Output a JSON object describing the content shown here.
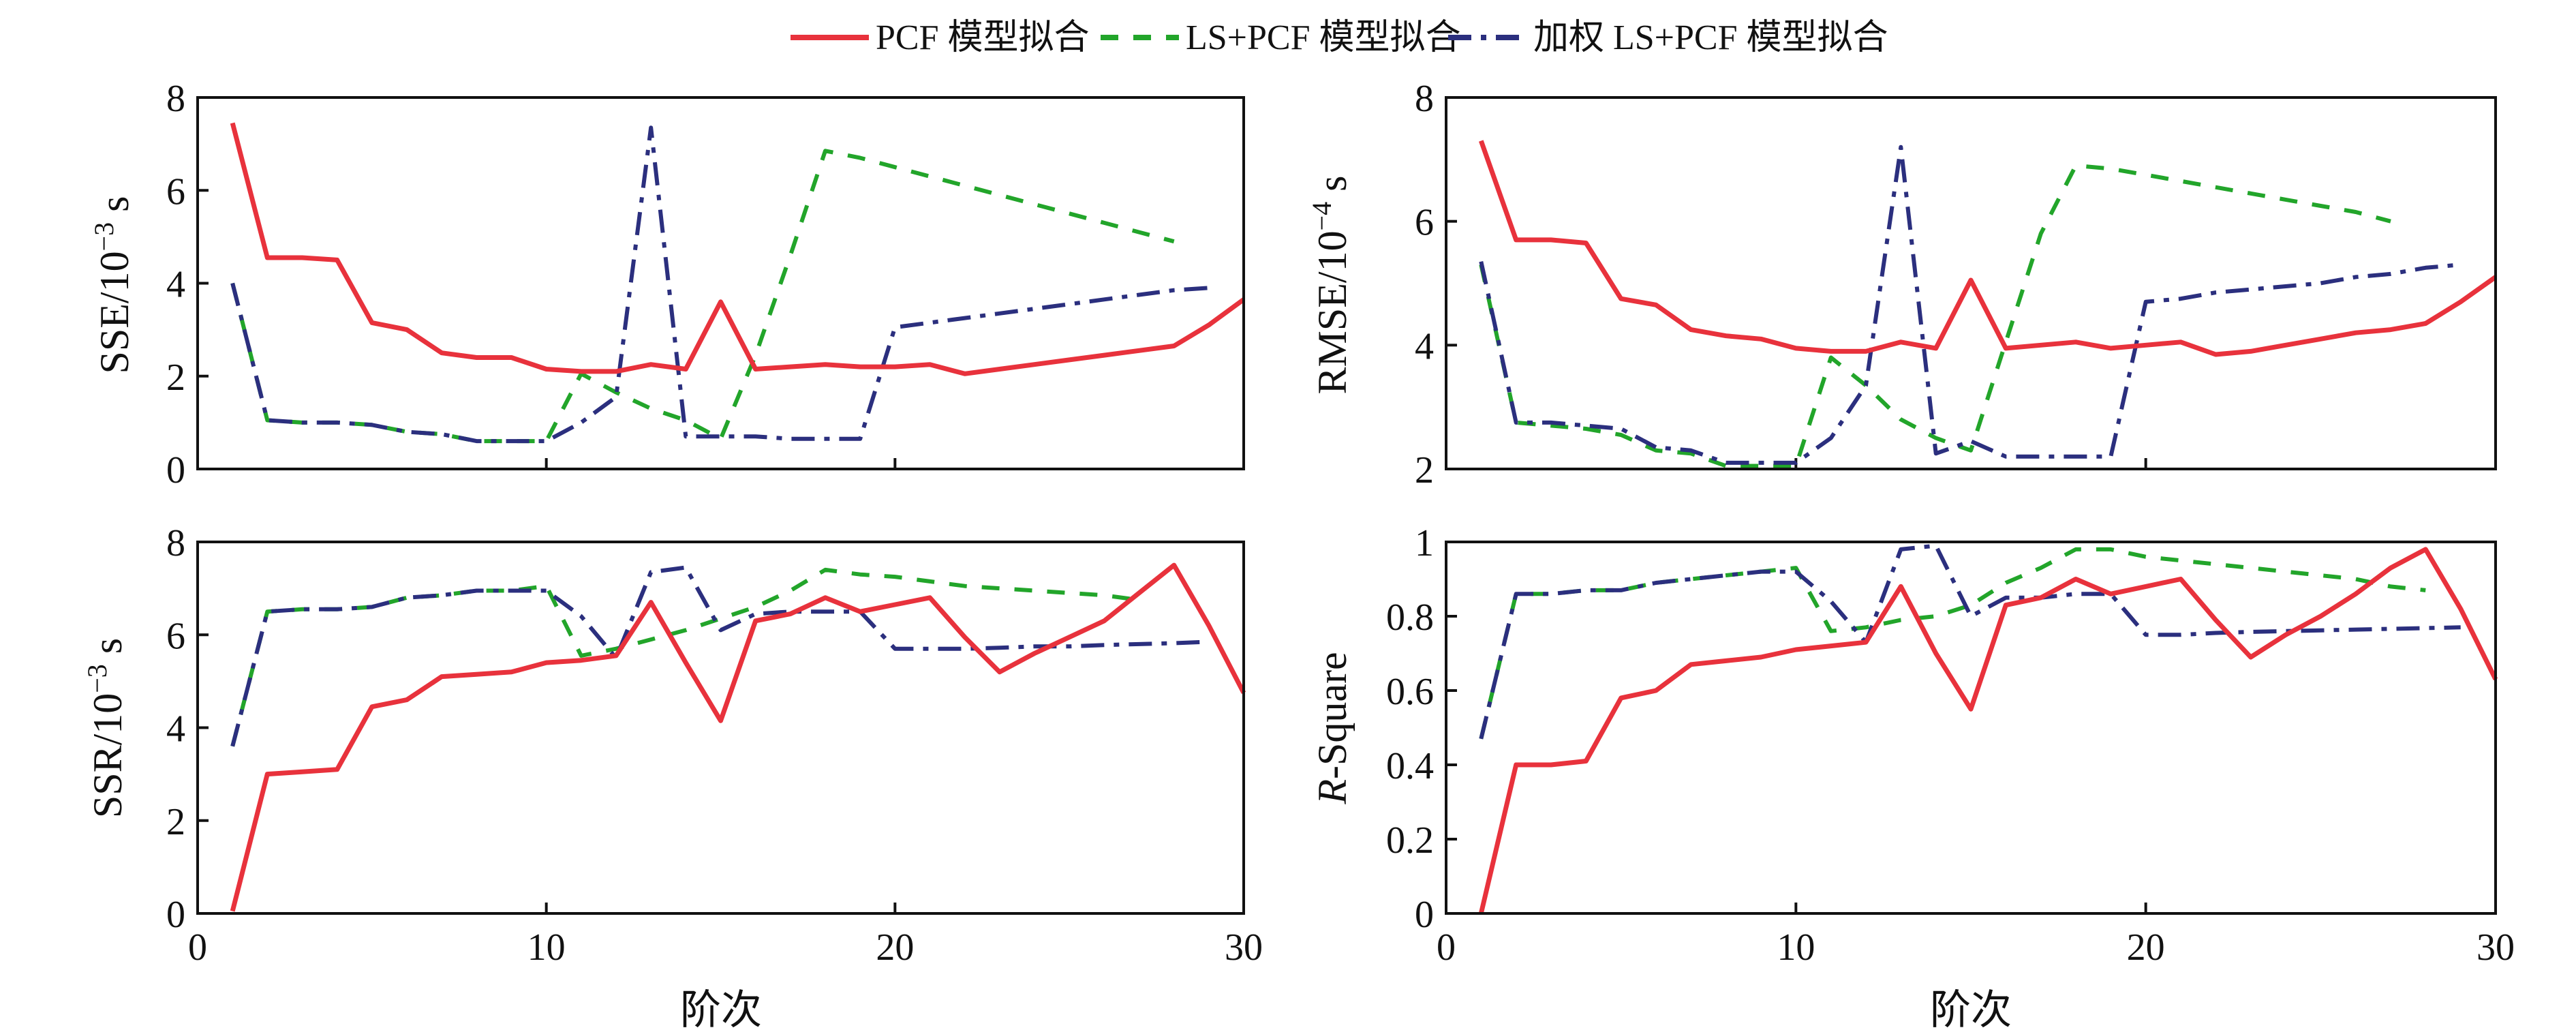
{
  "legend": [
    {
      "label": "PCF 模型拟合",
      "series": "pcf"
    },
    {
      "label": "LS+PCF 模型拟合",
      "series": "ls"
    },
    {
      "label": "加权 LS+PCF 模型拟合",
      "series": "wls"
    }
  ],
  "series_styles": {
    "pcf": {
      "color": "#e8323c",
      "dash": "none"
    },
    "ls": {
      "color": "#22a52a",
      "dash": "26,22"
    },
    "wls": {
      "color": "#2b2f7e",
      "dash": "34,14,8,14"
    }
  },
  "chart_data": [
    {
      "type": "line",
      "id": "sse",
      "ylabel_main": "SSE/10",
      "ylabel_exp": "−3",
      "ylabel_unit": " s",
      "xlabel": "",
      "xlim": [
        0,
        30
      ],
      "ylim": [
        0,
        8
      ],
      "xticks": [
        0,
        10,
        20,
        30
      ],
      "yticks": [
        0,
        2,
        4,
        6,
        8
      ],
      "series": [
        {
          "name": "PCF 模型拟合",
          "key": "pcf",
          "x": [
            1,
            2,
            3,
            4,
            5,
            6,
            7,
            8,
            9,
            10,
            11,
            12,
            13,
            14,
            15,
            16,
            17,
            18,
            19,
            20,
            21,
            22,
            23,
            24,
            25,
            26,
            27,
            28,
            29,
            30
          ],
          "y": [
            7.45,
            4.55,
            4.55,
            4.5,
            3.15,
            3.0,
            2.5,
            2.4,
            2.4,
            2.15,
            2.1,
            2.1,
            2.25,
            2.15,
            3.6,
            2.15,
            2.2,
            2.25,
            2.2,
            2.2,
            2.25,
            2.05,
            2.15,
            2.25,
            2.35,
            2.45,
            2.55,
            2.65,
            3.1,
            3.65
          ]
        },
        {
          "name": "LS+PCF 模型拟合",
          "key": "ls",
          "x": [
            1,
            2,
            3,
            4,
            5,
            6,
            7,
            8,
            9,
            10,
            11,
            12,
            13,
            14,
            15,
            16,
            17,
            18,
            19,
            20,
            21,
            22,
            23,
            24,
            25,
            26,
            27,
            28
          ],
          "y": [
            4.0,
            1.05,
            1.0,
            1.0,
            0.95,
            0.8,
            0.75,
            0.6,
            0.6,
            0.6,
            2.05,
            1.65,
            1.3,
            1.05,
            0.65,
            2.45,
            4.6,
            6.85,
            6.7,
            6.5,
            6.3,
            6.1,
            5.9,
            5.7,
            5.5,
            5.3,
            5.1,
            4.9
          ]
        },
        {
          "name": "加权 LS+PCF 模型拟合",
          "key": "wls",
          "x": [
            1,
            2,
            3,
            4,
            5,
            6,
            7,
            8,
            9,
            10,
            11,
            12,
            13,
            14,
            15,
            16,
            17,
            18,
            19,
            20,
            21,
            22,
            23,
            24,
            25,
            26,
            27,
            28,
            29
          ],
          "y": [
            4.0,
            1.05,
            1.0,
            1.0,
            0.95,
            0.8,
            0.75,
            0.6,
            0.6,
            0.6,
            1.0,
            1.55,
            7.35,
            0.7,
            0.7,
            0.7,
            0.65,
            0.65,
            0.65,
            3.05,
            3.15,
            3.25,
            3.35,
            3.45,
            3.55,
            3.65,
            3.75,
            3.85,
            3.9
          ]
        }
      ]
    },
    {
      "type": "line",
      "id": "rmse",
      "ylabel_main": "RMSE/10",
      "ylabel_exp": "−4",
      "ylabel_unit": " s",
      "xlabel": "",
      "xlim": [
        0,
        30
      ],
      "ylim": [
        2,
        8
      ],
      "xticks": [
        0,
        10,
        20,
        30
      ],
      "yticks": [
        2,
        4,
        6,
        8
      ],
      "series": [
        {
          "name": "PCF 模型拟合",
          "key": "pcf",
          "x": [
            1,
            2,
            3,
            4,
            5,
            6,
            7,
            8,
            9,
            10,
            11,
            12,
            13,
            14,
            15,
            16,
            17,
            18,
            19,
            20,
            21,
            22,
            23,
            24,
            25,
            26,
            27,
            28,
            29,
            30
          ],
          "y": [
            7.3,
            5.7,
            5.7,
            5.65,
            4.75,
            4.65,
            4.25,
            4.15,
            4.1,
            3.95,
            3.9,
            3.9,
            4.05,
            3.95,
            5.05,
            3.95,
            4.0,
            4.05,
            3.95,
            4.0,
            4.05,
            3.85,
            3.9,
            4.0,
            4.1,
            4.2,
            4.25,
            4.35,
            4.7,
            5.1
          ]
        },
        {
          "name": "LS+PCF 模型拟合",
          "key": "ls",
          "x": [
            1,
            2,
            3,
            4,
            5,
            6,
            7,
            8,
            9,
            10,
            11,
            12,
            13,
            14,
            15,
            16,
            17,
            18,
            19,
            20,
            21,
            22,
            23,
            24,
            25,
            26,
            27
          ],
          "y": [
            5.3,
            2.75,
            2.7,
            2.65,
            2.55,
            2.3,
            2.25,
            2.05,
            2.05,
            2.05,
            3.8,
            3.35,
            2.8,
            2.5,
            2.3,
            4.05,
            5.8,
            6.9,
            6.85,
            6.75,
            6.65,
            6.55,
            6.45,
            6.35,
            6.25,
            6.15,
            6.0
          ]
        },
        {
          "name": "加权 LS+PCF 模型拟合",
          "key": "wls",
          "x": [
            1,
            2,
            3,
            4,
            5,
            6,
            7,
            8,
            9,
            10,
            11,
            12,
            13,
            14,
            15,
            16,
            17,
            18,
            19,
            20,
            21,
            22,
            23,
            24,
            25,
            26,
            27,
            28,
            29
          ],
          "y": [
            5.35,
            2.75,
            2.75,
            2.7,
            2.65,
            2.35,
            2.3,
            2.1,
            2.1,
            2.1,
            2.5,
            3.35,
            7.2,
            2.25,
            2.45,
            2.2,
            2.2,
            2.2,
            2.2,
            4.7,
            4.75,
            4.85,
            4.9,
            4.95,
            5.0,
            5.1,
            5.15,
            5.25,
            5.3
          ]
        }
      ]
    },
    {
      "type": "line",
      "id": "ssr",
      "ylabel_main": "SSR/10",
      "ylabel_exp": "−3",
      "ylabel_unit": " s",
      "xlabel": "阶次",
      "xlim": [
        0,
        30
      ],
      "ylim": [
        0,
        8
      ],
      "xticks": [
        0,
        10,
        20,
        30
      ],
      "yticks": [
        0,
        2,
        4,
        6,
        8
      ],
      "series": [
        {
          "name": "PCF 模型拟合",
          "key": "pcf",
          "x": [
            1,
            2,
            3,
            4,
            5,
            6,
            7,
            8,
            9,
            10,
            11,
            12,
            13,
            14,
            15,
            16,
            17,
            18,
            19,
            20,
            21,
            22,
            23,
            24,
            25,
            26,
            27,
            28,
            29,
            30
          ],
          "y": [
            0.05,
            3.0,
            3.05,
            3.1,
            4.45,
            4.6,
            5.1,
            5.15,
            5.2,
            5.4,
            5.45,
            5.55,
            6.7,
            5.4,
            4.15,
            6.3,
            6.45,
            6.8,
            6.5,
            6.65,
            6.8,
            5.95,
            5.2,
            5.6,
            5.95,
            6.3,
            6.9,
            7.5,
            6.2,
            4.75
          ]
        },
        {
          "name": "LS+PCF 模型拟合",
          "key": "ls",
          "x": [
            1,
            2,
            3,
            4,
            5,
            6,
            7,
            8,
            9,
            10,
            11,
            12,
            13,
            14,
            15,
            16,
            17,
            18,
            19,
            20,
            21,
            22,
            23,
            24,
            25,
            26,
            27
          ],
          "y": [
            3.6,
            6.5,
            6.55,
            6.55,
            6.6,
            6.8,
            6.85,
            6.95,
            6.95,
            7.05,
            5.55,
            5.7,
            5.9,
            6.1,
            6.35,
            6.6,
            6.95,
            7.4,
            7.3,
            7.25,
            7.15,
            7.05,
            7.0,
            6.95,
            6.9,
            6.85,
            6.75
          ]
        },
        {
          "name": "加权 LS+PCF 模型拟合",
          "key": "wls",
          "x": [
            1,
            2,
            3,
            4,
            5,
            6,
            7,
            8,
            9,
            10,
            11,
            12,
            13,
            14,
            15,
            16,
            17,
            18,
            19,
            20,
            21,
            22,
            23,
            24,
            25,
            26,
            27,
            28,
            29
          ],
          "y": [
            3.6,
            6.5,
            6.55,
            6.55,
            6.6,
            6.8,
            6.85,
            6.95,
            6.95,
            6.95,
            6.4,
            5.5,
            7.35,
            7.45,
            6.1,
            6.45,
            6.5,
            6.5,
            6.5,
            5.7,
            5.7,
            5.7,
            5.72,
            5.75,
            5.75,
            5.78,
            5.8,
            5.82,
            5.85
          ]
        }
      ]
    },
    {
      "type": "line",
      "id": "rsquare",
      "ylabel_main": "R",
      "ylabel_exp": "",
      "ylabel_unit": "-Square",
      "xlabel": "阶次",
      "xlim": [
        0,
        30
      ],
      "ylim": [
        0,
        1.0
      ],
      "xticks": [
        0,
        10,
        20,
        30
      ],
      "yticks": [
        0,
        0.2,
        0.4,
        0.6,
        0.8,
        1.0
      ],
      "series": [
        {
          "name": "PCF 模型拟合",
          "key": "pcf",
          "x": [
            1,
            2,
            3,
            4,
            5,
            6,
            7,
            8,
            9,
            10,
            11,
            12,
            13,
            14,
            15,
            16,
            17,
            18,
            19,
            20,
            21,
            22,
            23,
            24,
            25,
            26,
            27,
            28,
            29,
            30
          ],
          "y": [
            0.0,
            0.4,
            0.4,
            0.41,
            0.58,
            0.6,
            0.67,
            0.68,
            0.69,
            0.71,
            0.72,
            0.73,
            0.88,
            0.7,
            0.55,
            0.83,
            0.85,
            0.9,
            0.86,
            0.88,
            0.9,
            0.79,
            0.69,
            0.75,
            0.8,
            0.86,
            0.93,
            0.98,
            0.82,
            0.63
          ]
        },
        {
          "name": "LS+PCF 模型拟合",
          "key": "ls",
          "x": [
            1,
            2,
            3,
            4,
            5,
            6,
            7,
            8,
            9,
            10,
            11,
            12,
            13,
            14,
            15,
            16,
            17,
            18,
            19,
            20,
            21,
            22,
            23,
            24,
            25,
            26,
            27,
            28
          ],
          "y": [
            0.47,
            0.86,
            0.86,
            0.87,
            0.87,
            0.89,
            0.9,
            0.91,
            0.92,
            0.93,
            0.76,
            0.77,
            0.79,
            0.8,
            0.83,
            0.89,
            0.93,
            0.98,
            0.98,
            0.96,
            0.95,
            0.94,
            0.93,
            0.92,
            0.91,
            0.9,
            0.88,
            0.87
          ]
        },
        {
          "name": "加权 LS+PCF 模型拟合",
          "key": "wls",
          "x": [
            1,
            2,
            3,
            4,
            5,
            6,
            7,
            8,
            9,
            10,
            11,
            12,
            13,
            14,
            15,
            16,
            17,
            18,
            19,
            20,
            21,
            22,
            23,
            24,
            25,
            26,
            27,
            28,
            29
          ],
          "y": [
            0.47,
            0.86,
            0.86,
            0.87,
            0.87,
            0.89,
            0.9,
            0.91,
            0.92,
            0.92,
            0.84,
            0.73,
            0.98,
            0.99,
            0.8,
            0.85,
            0.85,
            0.86,
            0.86,
            0.75,
            0.75,
            0.755,
            0.758,
            0.76,
            0.762,
            0.764,
            0.766,
            0.768,
            0.77
          ]
        }
      ]
    }
  ]
}
